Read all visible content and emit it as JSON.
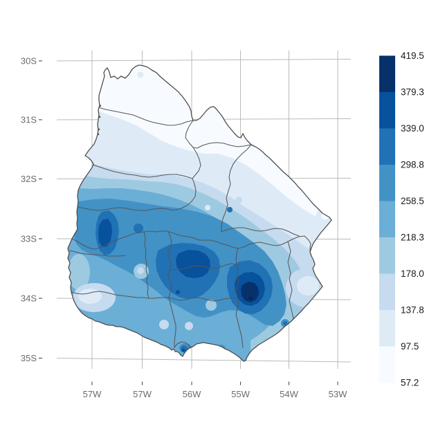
{
  "chart_data": {
    "type": "filled_contour_map",
    "title": "",
    "region_shape": "Uruguay with department boundaries",
    "x_axis": {
      "tick_labels": [
        "57W",
        "57W",
        "56W",
        "55W",
        "54W",
        "53W"
      ]
    },
    "y_axis": {
      "tick_labels": [
        "30S",
        "31S",
        "32S",
        "33S",
        "34S",
        "35S"
      ]
    },
    "colorbar": {
      "labels_top_to_bottom": [
        "419.5",
        "379.3",
        "339.0",
        "298.8",
        "258.5",
        "218.3",
        "178.0",
        "137.8",
        "97.5",
        "57.2"
      ],
      "values": [
        419.5,
        379.3,
        339.0,
        298.8,
        258.5,
        218.3,
        178.0,
        137.8,
        97.5,
        57.2
      ],
      "band_colors_top_to_bottom": [
        "#08306B",
        "#08519C",
        "#2171B5",
        "#4292C6",
        "#6BAED6",
        "#9ECAE1",
        "#C6DBEF",
        "#DEEBF7",
        "#F7FBFF"
      ]
    },
    "value_range": [
      57.2,
      419.5
    ],
    "pattern": {
      "low_region": "north of country, approx 57-140",
      "high_region": "south-central belt, approx 300-420",
      "maxima_estimates": [
        {
          "near": "55W 34S (southeast core)",
          "value_band": "379.3-419.5"
        },
        {
          "near": "56W 33.7S (central core)",
          "value_band": "339.0-379.3"
        },
        {
          "near": "57.5W 33S (west core)",
          "value_band": "339.0-379.3"
        }
      ]
    },
    "legend_position": "right",
    "grid": true
  },
  "axes": {
    "lat": {
      "labels": [
        "30S",
        "31S",
        "32S",
        "33S",
        "34S",
        "35S"
      ]
    },
    "lon": {
      "labels": [
        "57W",
        "57W",
        "56W",
        "55W",
        "54W",
        "53W"
      ]
    }
  },
  "legend": {
    "labels": [
      "419.5",
      "379.3",
      "339.0",
      "298.8",
      "258.5",
      "218.3",
      "178.0",
      "137.8",
      "97.5",
      "57.2"
    ],
    "colors": [
      "#08306B",
      "#08519C",
      "#2171B5",
      "#4292C6",
      "#6BAED6",
      "#9ECAE1",
      "#C6DBEF",
      "#DEEBF7",
      "#F7FBFF"
    ]
  },
  "style": {
    "grid_color": "#bababa",
    "tick_color": "#4a4a4a",
    "axis_text_color": "#6b6b6b",
    "legend_text_color": "#1a1a1a",
    "department_border_color": "#565656",
    "outline_color": "#4d4d4d",
    "background": "#ffffff"
  }
}
